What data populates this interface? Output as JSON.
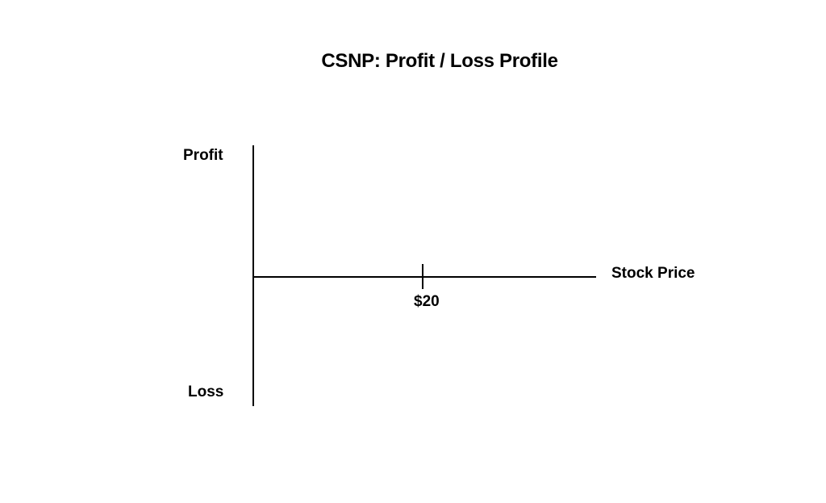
{
  "title": "CSNP: Profit / Loss Profile",
  "axes": {
    "y_top_label": "Profit",
    "y_bottom_label": "Loss",
    "x_label": "Stock Price",
    "tick_label": "$20"
  },
  "colors": {
    "line": "#000000",
    "background": "#ffffff"
  }
}
